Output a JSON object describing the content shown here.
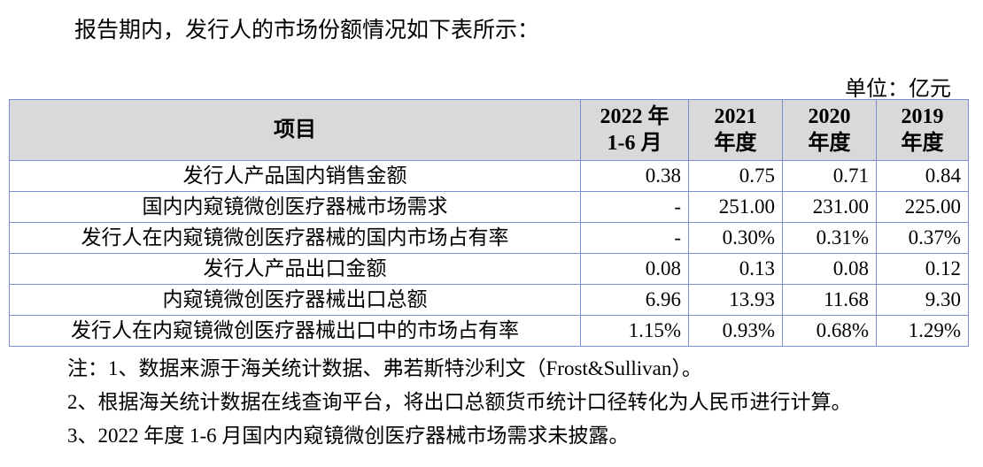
{
  "intro": "报告期内，发行人的市场份额情况如下表所示：",
  "unit": "单位：亿元",
  "table": {
    "headers": [
      {
        "l1": "项目",
        "l2": ""
      },
      {
        "l1": "2022 年",
        "l2": "1-6 月"
      },
      {
        "l1": "2021",
        "l2": "年度"
      },
      {
        "l1": "2020",
        "l2": "年度"
      },
      {
        "l1": "2019",
        "l2": "年度"
      }
    ],
    "rows": [
      [
        "发行人产品国内销售金额",
        "0.38",
        "0.75",
        "0.71",
        "0.84"
      ],
      [
        "国内内窥镜微创医疗器械市场需求",
        "-",
        "251.00",
        "231.00",
        "225.00"
      ],
      [
        "发行人在内窥镜微创医疗器械的国内市场占有率",
        "-",
        "0.30%",
        "0.31%",
        "0.37%"
      ],
      [
        "发行人产品出口金额",
        "0.08",
        "0.13",
        "0.08",
        "0.12"
      ],
      [
        "内窥镜微创医疗器械出口总额",
        "6.96",
        "13.93",
        "11.68",
        "9.30"
      ],
      [
        "发行人在内窥镜微创医疗器械出口中的市场占有率",
        "1.15%",
        "0.93%",
        "0.68%",
        "1.29%"
      ]
    ]
  },
  "notes": [
    "注：1、数据来源于海关统计数据、弗若斯特沙利文（Frost&Sullivan）。",
    "2、根据海关统计数据在线查询平台，将出口总额货币统计口径转化为人民币进行计算。",
    "3、2022 年度 1-6 月国内内窥镜微创医疗器械市场需求未披露。"
  ]
}
